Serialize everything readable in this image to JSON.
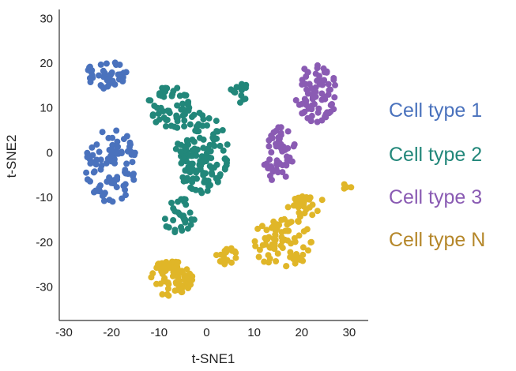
{
  "chart_data": {
    "type": "scatter",
    "title": "",
    "xlabel": "t-SNE1",
    "ylabel": "t-SNE2",
    "xlim": [
      -31,
      34
    ],
    "ylim": [
      -37.5,
      32
    ],
    "xticks": [
      -30,
      -20,
      -10,
      0,
      10,
      20,
      30
    ],
    "yticks": [
      -30,
      -20,
      -10,
      0,
      10,
      20,
      30
    ],
    "grid": false,
    "legend_position": "right",
    "series": [
      {
        "name": "Cell type 1",
        "color": "#4a72bd",
        "clusters": [
          {
            "center": [
              -21,
              17.5
            ],
            "spread": [
              4.2,
              3.2
            ],
            "count": 45,
            "seed": 11
          },
          {
            "center": [
              -20,
              -3
            ],
            "spread": [
              5.8,
              8.2
            ],
            "count": 90,
            "seed": 12
          }
        ]
      },
      {
        "name": "Cell type 2",
        "color": "#22877a",
        "clusters": [
          {
            "center": [
              -8,
              10
            ],
            "spread": [
              4.5,
              5.0
            ],
            "count": 55,
            "seed": 21
          },
          {
            "center": [
              -1,
              0
            ],
            "spread": [
              5.5,
              9.0
            ],
            "count": 130,
            "seed": 22
          },
          {
            "center": [
              7,
              13.5
            ],
            "spread": [
              2.0,
              2.5
            ],
            "count": 14,
            "seed": 23
          },
          {
            "center": [
              -6,
              -14
            ],
            "spread": [
              3.5,
              4.0
            ],
            "count": 30,
            "seed": 24
          }
        ]
      },
      {
        "name": "Cell type 3",
        "color": "#8a5bb3",
        "clusters": [
          {
            "center": [
              23,
              13
            ],
            "spread": [
              4.5,
              7.0
            ],
            "count": 75,
            "seed": 31
          },
          {
            "center": [
              16,
              2
            ],
            "spread": [
              3.0,
              4.0
            ],
            "count": 30,
            "seed": 32
          },
          {
            "center": [
              15,
              -3
            ],
            "spread": [
              3.2,
              3.5
            ],
            "count": 25,
            "seed": 33
          }
        ]
      },
      {
        "name": "Cell type N",
        "color": "#e0b628",
        "clusters": [
          {
            "center": [
              -7.5,
              -28
            ],
            "spread": [
              4.5,
              4.0
            ],
            "count": 80,
            "seed": 41
          },
          {
            "center": [
              4,
              -23
            ],
            "spread": [
              3.0,
              2.0
            ],
            "count": 20,
            "seed": 42
          },
          {
            "center": [
              16,
              -20
            ],
            "spread": [
              6.5,
              5.5
            ],
            "count": 80,
            "seed": 43
          },
          {
            "center": [
              21,
              -12
            ],
            "spread": [
              4.0,
              3.0
            ],
            "count": 25,
            "seed": 44
          },
          {
            "center": [
              29.5,
              -7.5
            ],
            "spread": [
              1.2,
              1.0
            ],
            "count": 4,
            "seed": 45
          }
        ]
      }
    ]
  },
  "legend": {
    "label_color_type_n": "#b5872a"
  }
}
